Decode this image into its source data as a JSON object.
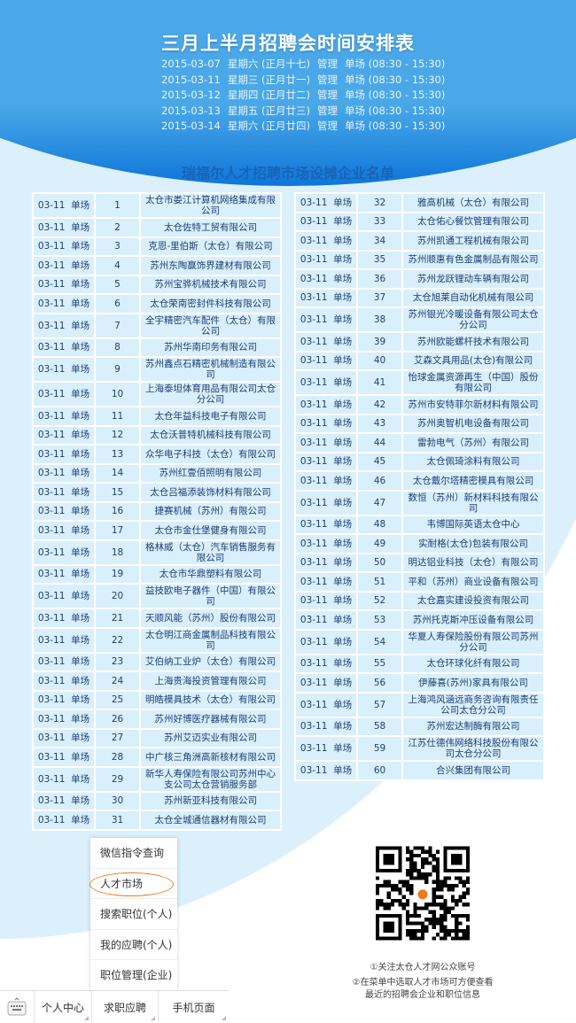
{
  "header": {
    "title": "三月上半月招聘会时间安排表",
    "schedule": [
      {
        "date": "2015-03-07",
        "weekday": "星期六 (正月十七)",
        "type": "管理",
        "detail": "单场 (08:30 - 15:30)"
      },
      {
        "date": "2015-03-11",
        "weekday": "星期三 (正月廿一)",
        "type": "管理",
        "detail": "单场 (08:30 - 15:30)"
      },
      {
        "date": "2015-03-12",
        "weekday": "星期四 (正月廿二)",
        "type": "管理",
        "detail": "单场 (08:30 - 15:30)"
      },
      {
        "date": "2015-03-13",
        "weekday": "星期五 (正月廿三)",
        "type": "管理",
        "detail": "单场 (08:30 - 15:30)"
      },
      {
        "date": "2015-03-14",
        "weekday": "星期六 (正月廿四)",
        "type": "管理",
        "detail": "单场 (08:30 - 15:30)"
      }
    ]
  },
  "list_title": "瑞福尔人才招聘市场设摊企业名单",
  "session": "03-11  单场",
  "companies": [
    "太仓市娄江计算机网络集成有限公司",
    "太仓佐特工贸有限公司",
    "克恩-里伯斯（太仓）有限公司",
    "苏州东陶赢饰界建材有限公司",
    "苏州宝骅机械技术有限公司",
    "太仓荣南密封件科技有限公司",
    "全宇精密汽车配件（太仓）有限公司",
    "苏州华南印务有限公司",
    "苏州鑫点石精密机械制造有限公司",
    "上海泰坦体育用品有限公司太仓分公司",
    "太仓年益科技电子有限公司",
    "太仓沃普特机械科技有限公司",
    "众华电子科技（太仓）有限公司",
    "苏州红壹佰照明有限公司",
    "太仓吕福添装饰材料有限公司",
    "捷赛机械（苏州）有限公司",
    "太仓市金仕堡健身有限公司",
    "格林威（太仓）汽车销售服务有限公司",
    "太仓市华鼎塑料有限公司",
    "益技欧电子器件（中国）有限公司",
    "天顺风能（苏州）股份有限公司",
    "太仓明江商金属制品科技有限公司",
    "艾伯纳工业炉（太仓）有限公司",
    "上海贵海投资管理有限公司",
    "明皓模具技术（太仓）有限公司",
    "苏州好博医疗器械有限公司",
    "苏州艾迈实业有限公司",
    "中广核三角洲高新核材有限公司",
    "新华人寿保险有限公司苏州中心支公司太仓营销服务部",
    "苏州新亚科技有限公司",
    "太仓全城通信器材有限公司",
    "雅高机械（太仓）有限公司",
    "太仓佑心餐饮管理有限公司",
    "苏州凯通工程机械有限公司",
    "苏州顺惠有色金属制品有限公司",
    "苏州龙跃锂动车辆有限公司",
    "太仓旭莱自动化机械有限公司",
    "苏州银光冷暖设备有限公司太仓分公司",
    "苏州欧能螺杆技术有限公司",
    "艾森文具用品(太仓)有限公司",
    "怡球金属资源再生（中国）股份有限公司",
    "苏州市安特菲尔新材料有限公司",
    "苏州奥智机电设备有限公司",
    "雷勃电气（苏州）有限公司",
    "太仓佩琦涂料有限公司",
    "太仓戴尔塔精密模具有限公司",
    "数恒（苏州）新材料科技有限公司",
    "韦博国际英语太仓中心",
    "实耐格(太仓)包装有限公司",
    "明达铝业科技（太仓）有限公司",
    "平和（苏州）商业设备有限公司",
    "太仓嘉实建设投资有限公司",
    "苏州托克斯冲压设备有限公司",
    "华夏人寿保险股份有限公司苏州分公司",
    "太仓环球化纤有限公司",
    "伊藤喜(苏州)家具有限公司",
    "上海鸿风涵远商务咨询有限责任公司太仓分公司",
    "苏州宏达制酶有限公司",
    "江苏仕德伟网络科技股份有限公司太仓分公司",
    "合兴集团有限公司"
  ],
  "menu": {
    "items": [
      "微信指令查询",
      "人才市场",
      "搜索职位(个人)",
      "我的应聘(个人)",
      "职位管理(企业)"
    ],
    "highlighted": "人才市场",
    "highlight_color": "#f07a1c"
  },
  "bottom_bar": {
    "keyboard_icon": "keyboard-icon",
    "items": [
      "个人中心",
      "求职应聘",
      "手机页面"
    ]
  },
  "qr": {
    "caption": [
      "①关注太仓人才网公众账号",
      "②在菜单中选取人才市场可方便查看",
      "最近的招聘会企业和职位信息"
    ]
  },
  "colors": {
    "header_blue": "#0a73d8",
    "light_bg": "#dcf0fc",
    "title_blue": "#1a63b5"
  }
}
